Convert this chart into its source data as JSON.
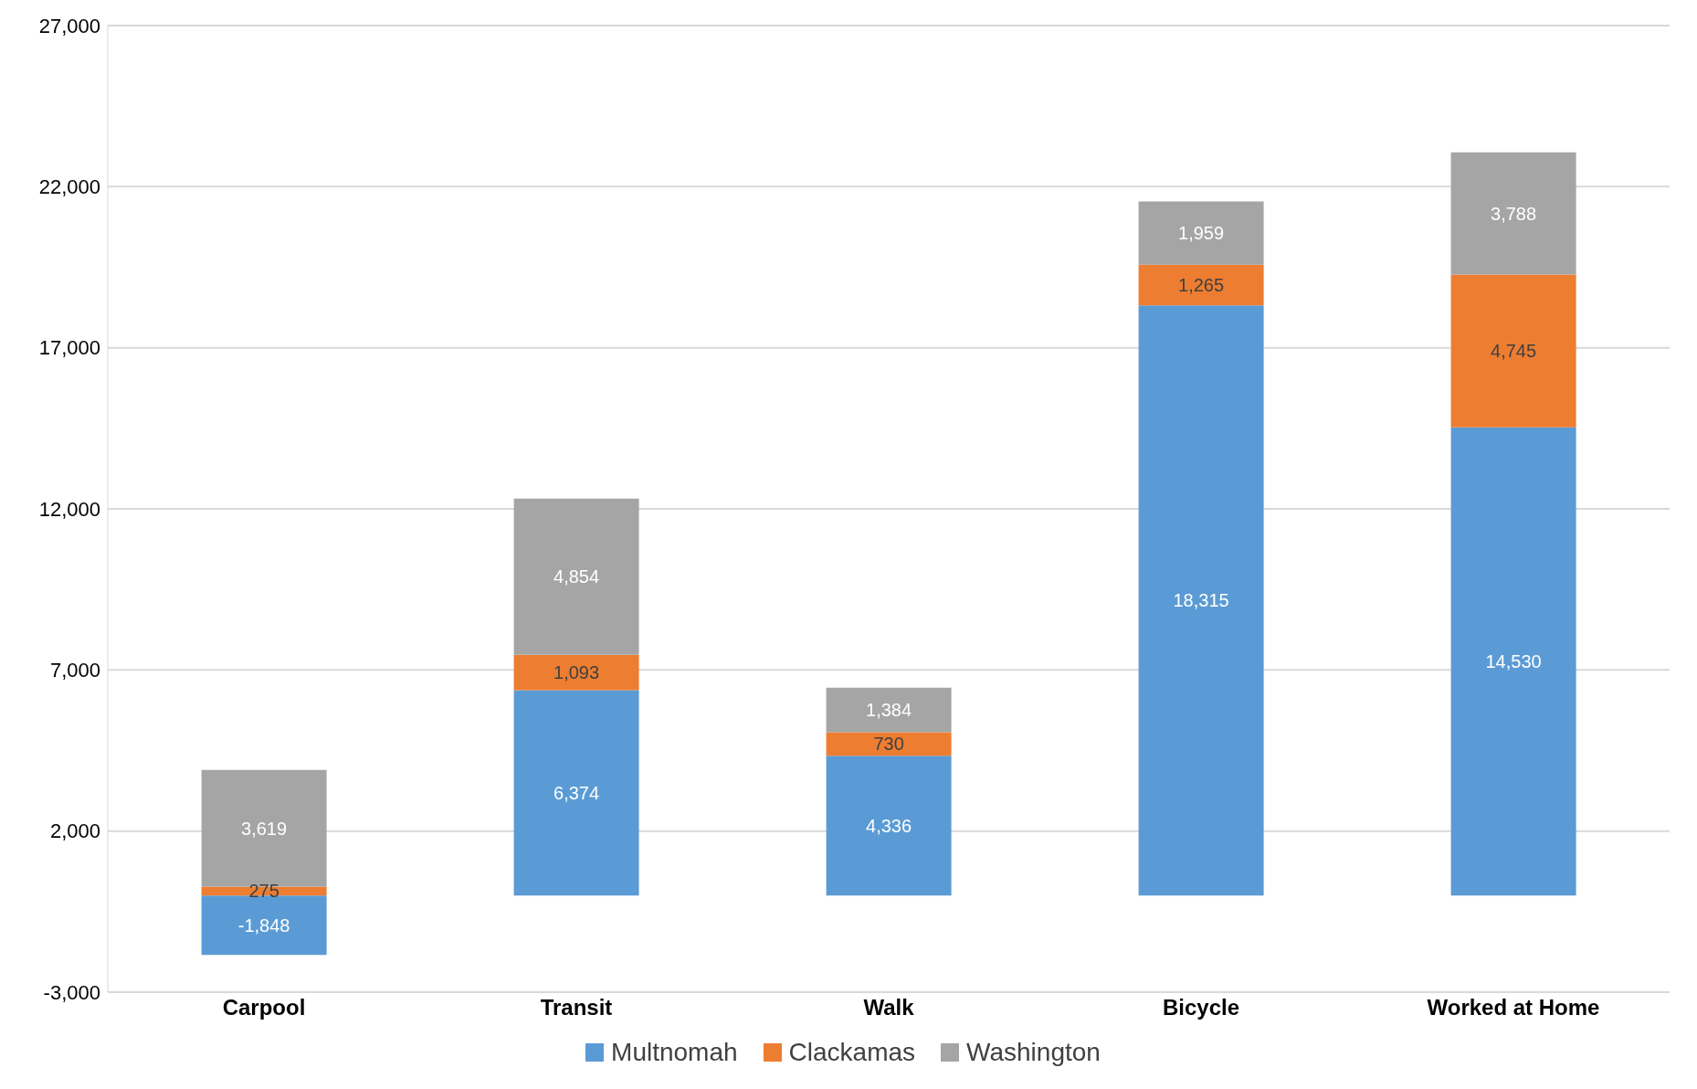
{
  "chart_data": {
    "type": "bar",
    "stacked": true,
    "categories": [
      "Carpool",
      "Transit",
      "Walk",
      "Bicycle",
      "Worked at Home"
    ],
    "series": [
      {
        "name": "Multnomah",
        "color": "#5b9bd5",
        "values": [
          -1848,
          6374,
          4336,
          18315,
          14530
        ],
        "value_labels": [
          "-1,848",
          "6,374",
          "4,336",
          "18,315",
          "14,530"
        ]
      },
      {
        "name": "Clackamas",
        "color": "#ed7d31",
        "values": [
          275,
          1093,
          730,
          1265,
          4745
        ],
        "value_labels": [
          "275",
          "1,093",
          "730",
          "1,265",
          "4,745"
        ]
      },
      {
        "name": "Washington",
        "color": "#a5a5a5",
        "values": [
          3619,
          4854,
          1384,
          1959,
          3788
        ],
        "value_labels": [
          "3,619",
          "4,854",
          "1,384",
          "1,959",
          "3,788"
        ]
      }
    ],
    "ylim": [
      -3000,
      27000
    ],
    "yticks": [
      {
        "value": -3000,
        "label": "-3,000"
      },
      {
        "value": 2000,
        "label": "2,000"
      },
      {
        "value": 7000,
        "label": "7,000"
      },
      {
        "value": 12000,
        "label": "12,000"
      },
      {
        "value": 17000,
        "label": "17,000"
      },
      {
        "value": 22000,
        "label": "22,000"
      },
      {
        "value": 27000,
        "label": "27,000"
      }
    ],
    "grid": "y",
    "legend": "bottom"
  }
}
